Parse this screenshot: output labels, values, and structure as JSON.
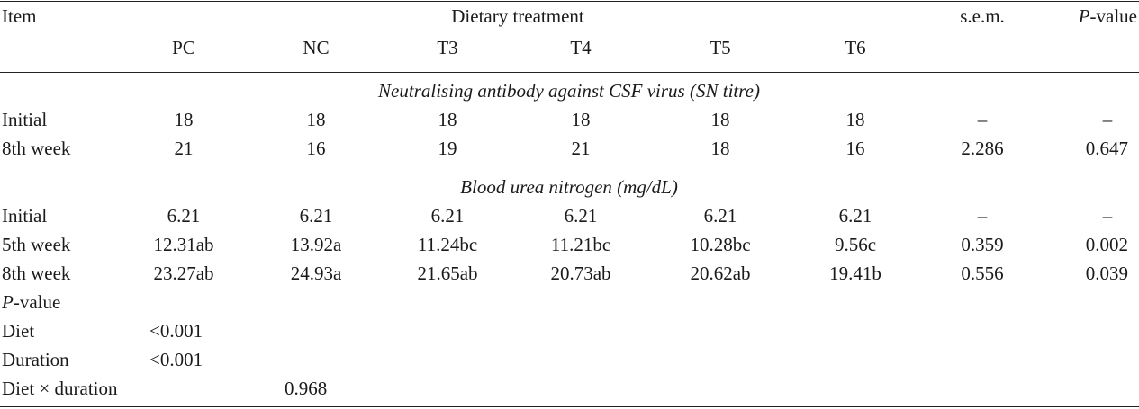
{
  "header": {
    "item": "Item",
    "dietary_treatment": "Dietary treatment",
    "sem": "s.e.m.",
    "pvalue_p": "P",
    "pvalue_rest": "-value",
    "columns": [
      "PC",
      "NC",
      "T3",
      "T4",
      "T5",
      "T6"
    ]
  },
  "sections": [
    {
      "title": "Neutralising antibody against CSF virus (SN titre)",
      "rows": [
        {
          "label": "Initial",
          "values": [
            "18",
            "18",
            "18",
            "18",
            "18",
            "18"
          ],
          "sem": "–",
          "p": "–"
        },
        {
          "label": "8th week",
          "values": [
            "21",
            "16",
            "19",
            "21",
            "18",
            "16"
          ],
          "sem": "2.286",
          "p": "0.647"
        }
      ]
    },
    {
      "title": "Blood urea nitrogen (mg/dL)",
      "rows": [
        {
          "label": "Initial",
          "values": [
            "6.21",
            "6.21",
            "6.21",
            "6.21",
            "6.21",
            "6.21"
          ],
          "sem": "–",
          "p": "–"
        },
        {
          "label": "5th week",
          "values": [
            "12.31ab",
            "13.92a",
            "11.24bc",
            "11.21bc",
            "10.28bc",
            "9.56c"
          ],
          "sem": "0.359",
          "p": "0.002"
        },
        {
          "label": "8th week",
          "values": [
            "23.27ab",
            "24.93a",
            "21.65ab",
            "20.73ab",
            "20.62ab",
            "19.41b"
          ],
          "sem": "0.556",
          "p": "0.039"
        }
      ]
    }
  ],
  "pvalue_block": {
    "heading_p": "P",
    "heading_rest": "-value",
    "rows": [
      {
        "label": "Diet",
        "value": "<0.001"
      },
      {
        "label": "Duration",
        "value": "<0.001"
      },
      {
        "label": "Diet × duration",
        "value": "0.968"
      }
    ]
  }
}
